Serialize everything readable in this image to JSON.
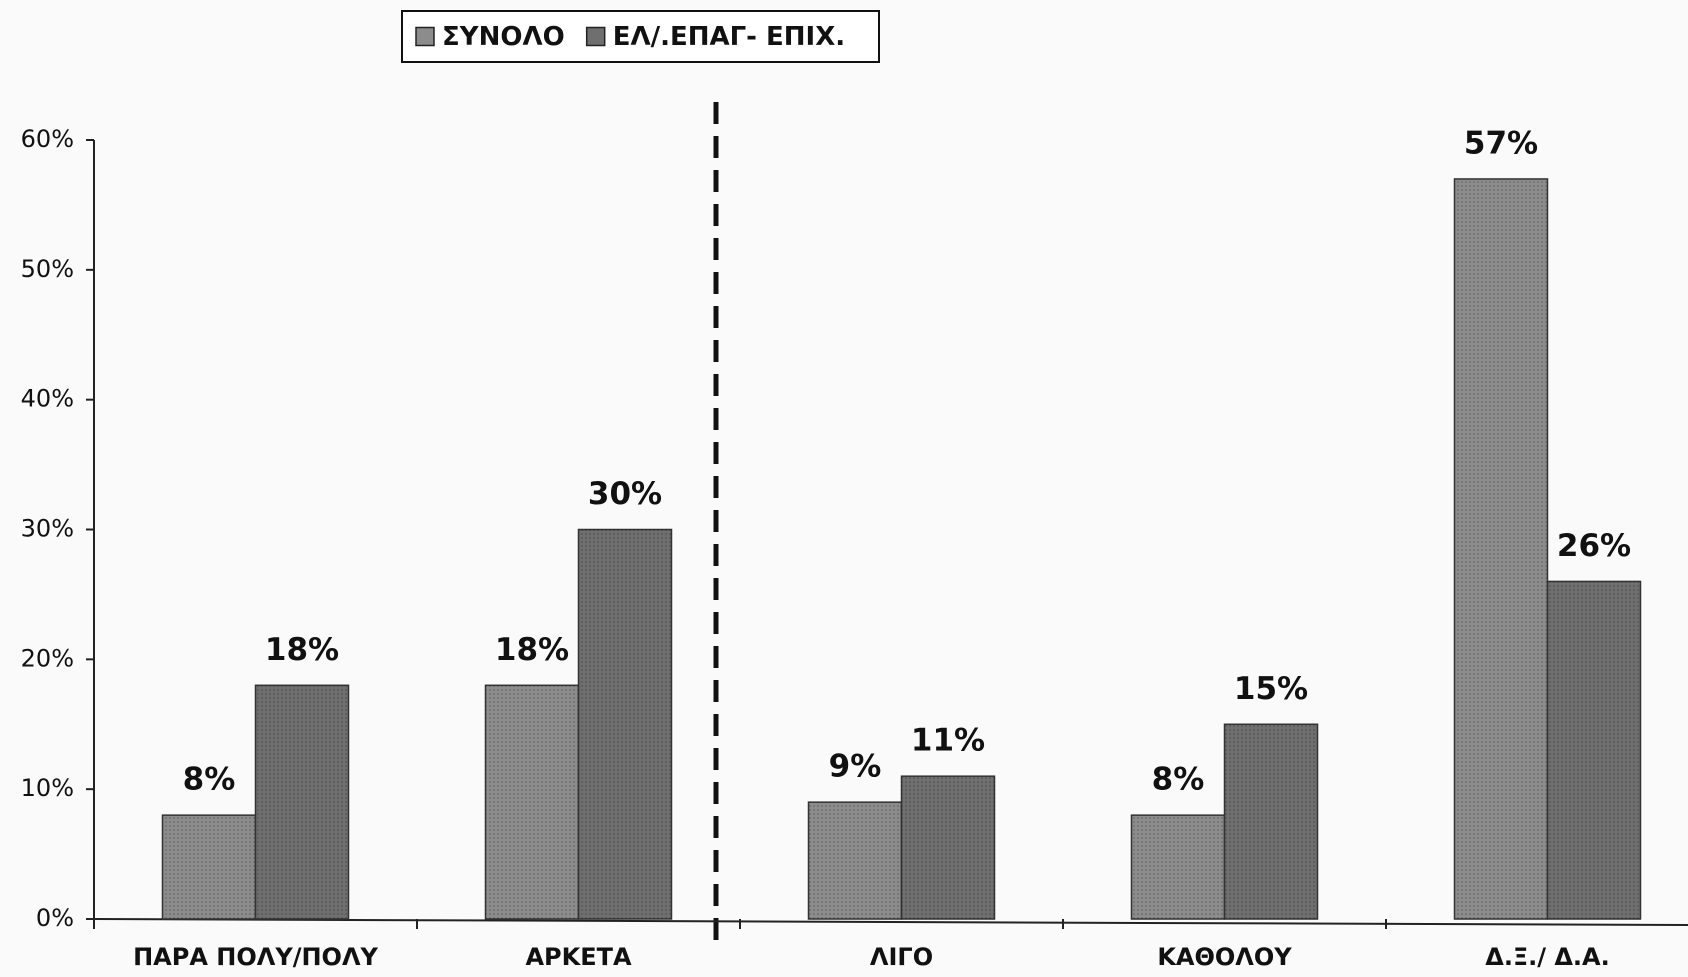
{
  "chart_data": {
    "type": "bar",
    "categories": [
      "ΠΑΡΑ ΠΟΛΥ/ΠΟΛΥ",
      "ΑΡΚΕΤΑ",
      "ΛΙΓΟ",
      "ΚΑΘΟΛΟΥ",
      "Δ.Ξ./ Δ.Α."
    ],
    "series": [
      {
        "name": "ΣΥΝΟΛΟ",
        "color": "#8c8c8c",
        "values": [
          8,
          18,
          9,
          8,
          57
        ],
        "value_labels": [
          "8%",
          "18%",
          "9%",
          "8%",
          "57%"
        ]
      },
      {
        "name": "ΕΛ/.ΕΠΑΓ- ΕΠΙΧ.",
        "color": "#6f6f6f",
        "values": [
          18,
          30,
          11,
          15,
          26
        ],
        "value_labels": [
          "18%",
          "30%",
          "11%",
          "15%",
          "26%"
        ]
      }
    ],
    "ylim": [
      0,
      60
    ],
    "yticks": [
      {
        "value": 0,
        "label": "0%"
      },
      {
        "value": 10,
        "label": "10%"
      },
      {
        "value": 20,
        "label": "20%"
      },
      {
        "value": 30,
        "label": "30%"
      },
      {
        "value": 40,
        "label": "40%"
      },
      {
        "value": 50,
        "label": "50%"
      },
      {
        "value": 60,
        "label": "60%"
      }
    ],
    "legend": "top"
  }
}
